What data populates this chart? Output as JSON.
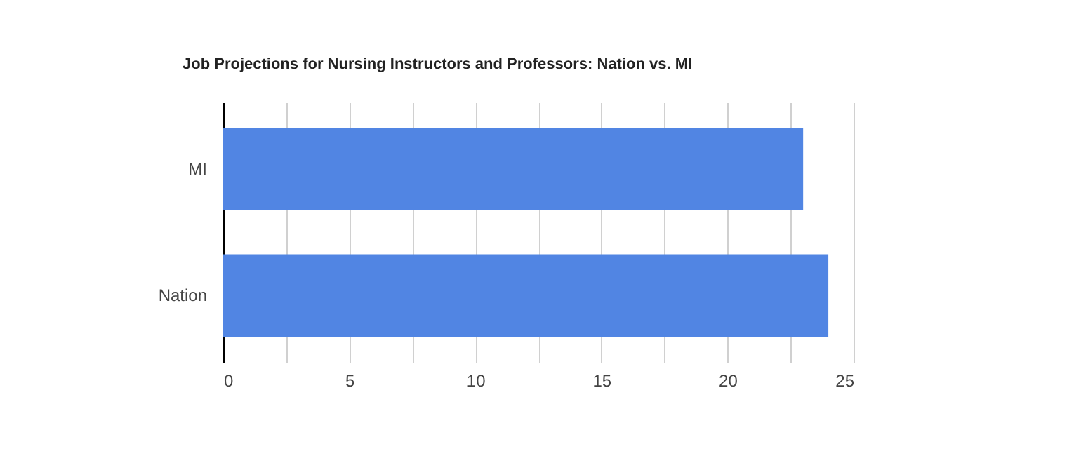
{
  "chart_data": {
    "type": "bar",
    "orientation": "horizontal",
    "title": "Job Projections for Nursing Instructors and Professors: Nation vs. MI",
    "categories": [
      "MI",
      "Nation"
    ],
    "values": [
      23,
      24
    ],
    "color": "#5185e3",
    "xlim": [
      0,
      25
    ],
    "xticks": [
      0,
      {
        "value": 2.5,
        "label": null
      },
      5,
      {
        "value": 7.5,
        "label": null
      },
      10,
      {
        "value": 12.5,
        "label": null
      },
      15,
      {
        "value": 17.5,
        "label": null
      },
      20,
      {
        "value": 22.5,
        "label": null
      },
      25
    ],
    "grid": "x"
  }
}
